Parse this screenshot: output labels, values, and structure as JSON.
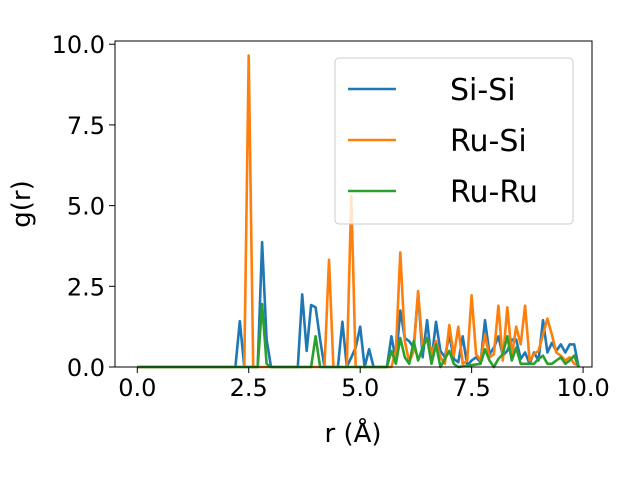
{
  "chart_data": {
    "type": "line",
    "title": "",
    "xlabel": "r (Å)",
    "ylabel": "g(r)",
    "xlim": [
      -0.5,
      10.2
    ],
    "ylim": [
      0,
      10.1
    ],
    "xticks": [
      0.0,
      2.5,
      5.0,
      7.5,
      10.0
    ],
    "xtick_labels": [
      "0.0",
      "2.5",
      "5.0",
      "7.5",
      "10.0"
    ],
    "yticks": [
      0.0,
      2.5,
      5.0,
      7.5,
      10.0
    ],
    "ytick_labels": [
      "0.0",
      "2.5",
      "5.0",
      "7.5",
      "10.0"
    ],
    "grid": false,
    "legend_position": "upper right",
    "series": [
      {
        "name": "Si-Si",
        "color": "#1f77b4",
        "x": [
          0.0,
          2.2,
          2.3,
          2.4,
          2.7,
          2.8,
          2.9,
          3.0,
          3.6,
          3.7,
          3.8,
          3.9,
          4.0,
          4.1,
          4.2,
          4.5,
          4.6,
          4.7,
          4.8,
          4.9,
          5.0,
          5.1,
          5.2,
          5.3,
          5.6,
          5.7,
          5.8,
          5.9,
          6.0,
          6.1,
          6.2,
          6.3,
          6.4,
          6.5,
          6.6,
          6.7,
          6.8,
          6.9,
          7.0,
          7.1,
          7.2,
          7.3,
          7.4,
          7.5,
          7.6,
          7.7,
          7.8,
          7.9,
          8.0,
          8.1,
          8.2,
          8.3,
          8.4,
          8.5,
          8.6,
          8.7,
          8.8,
          8.9,
          9.0,
          9.1,
          9.2,
          9.3,
          9.4,
          9.5,
          9.6,
          9.7,
          9.8,
          9.9
        ],
        "y": [
          0,
          0,
          1.42,
          0,
          0,
          3.87,
          0.85,
          0,
          0,
          2.25,
          0.5,
          1.92,
          1.85,
          0.85,
          0,
          0,
          1.4,
          0,
          0.3,
          0.6,
          1.25,
          0,
          0.55,
          0,
          0,
          0.95,
          0.2,
          1.75,
          0.9,
          0.8,
          0.6,
          2.3,
          0.3,
          1.45,
          0.2,
          1.4,
          0.5,
          0.3,
          1.0,
          0.25,
          0.15,
          0.95,
          0.05,
          0.2,
          0.3,
          0.15,
          1.45,
          0.4,
          0.6,
          0.95,
          0.35,
          0.5,
          0.85,
          0.85,
          0.25,
          0.45,
          0.1,
          0.45,
          0.2,
          1.45,
          0.45,
          0.75,
          0.5,
          0.7,
          0.45,
          0.7,
          0.7,
          0.0
        ]
      },
      {
        "name": "Ru-Si",
        "color": "#ff7f0e",
        "x": [
          0.0,
          2.4,
          2.5,
          2.6,
          3.0,
          4.2,
          4.3,
          4.4,
          4.7,
          4.8,
          4.9,
          5.7,
          5.8,
          5.9,
          6.0,
          6.1,
          6.2,
          6.3,
          6.4,
          6.5,
          6.6,
          6.7,
          6.8,
          6.9,
          7.0,
          7.1,
          7.2,
          7.3,
          7.4,
          7.5,
          7.6,
          7.7,
          7.8,
          7.9,
          8.0,
          8.1,
          8.2,
          8.3,
          8.4,
          8.5,
          8.6,
          8.7,
          8.8,
          8.9,
          9.0,
          9.1,
          9.2,
          9.3,
          9.4,
          9.5,
          9.6,
          9.7,
          9.8,
          9.9
        ],
        "y": [
          0,
          0,
          9.65,
          0,
          0,
          0,
          3.32,
          0,
          0,
          5.3,
          0,
          0,
          0.5,
          3.55,
          0.8,
          0.15,
          0.5,
          2.35,
          0.6,
          0.9,
          0.4,
          0.8,
          0.3,
          0.1,
          1.3,
          0.35,
          1.25,
          0.1,
          0.2,
          2.22,
          0.4,
          0.2,
          1.0,
          0.3,
          0.4,
          1.9,
          0.2,
          1.85,
          0.35,
          1.25,
          0.7,
          1.9,
          0.2,
          0.4,
          0.5,
          1.0,
          1.5,
          1.0,
          0.45,
          0.35,
          0.2,
          0.3,
          0.1,
          0.05
        ]
      },
      {
        "name": "Ru-Ru",
        "color": "#2ca02c",
        "x": [
          0.0,
          2.7,
          2.8,
          2.9,
          3.0,
          3.9,
          4.0,
          4.1,
          4.2,
          5.6,
          5.7,
          5.8,
          5.9,
          6.0,
          6.1,
          6.2,
          6.3,
          6.4,
          6.5,
          6.6,
          6.7,
          6.8,
          7.0,
          7.1,
          7.2,
          7.7,
          7.8,
          7.9,
          8.0,
          8.1,
          8.2,
          8.3,
          8.4,
          8.5,
          8.6,
          8.9,
          9.0,
          9.1,
          9.2,
          9.3,
          9.4,
          9.5,
          9.6,
          9.7,
          9.8,
          9.9
        ],
        "y": [
          0,
          0,
          1.95,
          0.1,
          0,
          0,
          0.95,
          0,
          0,
          0,
          0.5,
          0.1,
          0.9,
          0.3,
          0.1,
          0.8,
          0.2,
          0.6,
          0.9,
          0.1,
          0.7,
          0.0,
          0.5,
          0.1,
          0.0,
          0.1,
          0.55,
          0.2,
          0.0,
          0.25,
          0.4,
          0.95,
          0.2,
          0.6,
          0.1,
          0.1,
          0.25,
          0.35,
          0.1,
          0.1,
          0.2,
          0.3,
          0.1,
          0.2,
          0.35,
          0.0
        ]
      }
    ]
  }
}
